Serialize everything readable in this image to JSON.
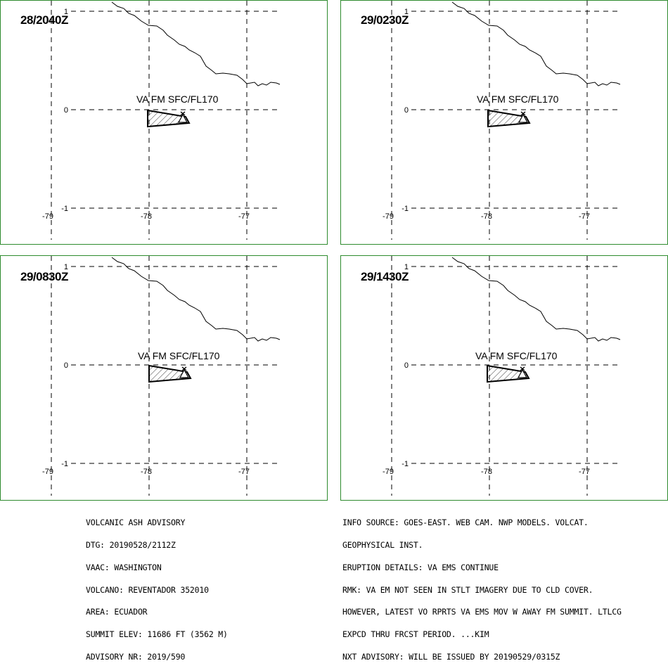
{
  "panels": [
    {
      "time": "28/2040Z",
      "va_label": "VA FM SFC/FL170"
    },
    {
      "time": "29/0230Z",
      "va_label": "VA FM SFC/FL170"
    },
    {
      "time": "29/0830Z",
      "va_label": "VA FM SFC/FL170"
    },
    {
      "time": "29/1430Z",
      "va_label": "VA FM SFC/FL170"
    }
  ],
  "axes": {
    "lon_ticks": [
      "-79",
      "-78",
      "-77"
    ],
    "lat_ticks": [
      "1",
      "0",
      "-1"
    ]
  },
  "advisory_left": [
    "VOLCANIC ASH ADVISORY",
    "DTG: 20190528/2112Z",
    "VAAC: WASHINGTON",
    "VOLCANO: REVENTADOR 352010",
    "AREA: ECUADOR",
    "SUMMIT ELEV: 11686 FT (3562 M)",
    "ADVISORY NR: 2019/590"
  ],
  "advisory_right": [
    "INFO SOURCE: GOES-EAST. WEB CAM. NWP MODELS. VOLCAT.",
    "GEOPHYSICAL INST.",
    "ERUPTION DETAILS: VA EMS CONTINUE",
    "RMK: VA EM NOT SEEN IN STLT IMAGERY DUE TO CLD COVER.",
    "HOWEVER, LATEST VO RPRTS VA EMS MOV W AWAY FM SUMMIT. LTLCG",
    "EXPCD THRU FRCST PERIOD. ...KIM",
    "NXT ADVISORY: WILL BE ISSUED BY 20190529/0315Z"
  ]
}
